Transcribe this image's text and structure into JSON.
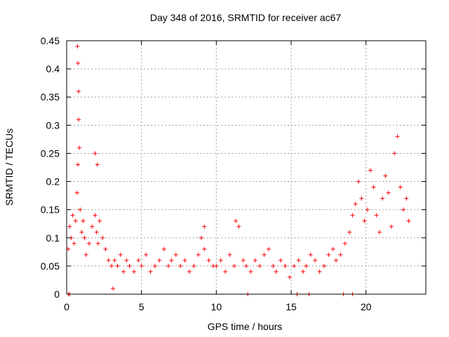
{
  "chart_data": {
    "type": "scatter",
    "title": "Day 348 of 2016, SRMTID for receiver ac67",
    "xlabel": "GPS time / hours",
    "ylabel": "SRMTID / TECUs",
    "xlim": [
      0,
      24
    ],
    "ylim": [
      0,
      0.45
    ],
    "xticks": [
      0,
      5,
      10,
      15,
      20
    ],
    "yticks": [
      0,
      0.05,
      0.1,
      0.15,
      0.2,
      0.25,
      0.3,
      0.35,
      0.4,
      0.45
    ],
    "xtick_labels": [
      "0",
      "5",
      "10",
      "15",
      "20"
    ],
    "ytick_labels": [
      "0",
      "0.05",
      "0.1",
      "0.15",
      "0.2",
      "0.25",
      "0.3",
      "0.35",
      "0.4",
      "0.45"
    ],
    "grid": true,
    "marker": "+",
    "color": "#ff0000",
    "series": [
      {
        "name": "SRMTID",
        "x": [
          0.1,
          0.2,
          0.3,
          0.4,
          0.5,
          0.6,
          0.7,
          0.75,
          0.8,
          0.85,
          0.9,
          1.0,
          1.1,
          1.2,
          1.3,
          1.5,
          1.7,
          1.9,
          2.0,
          2.1,
          2.2,
          2.4,
          2.6,
          2.8,
          3.0,
          3.2,
          3.4,
          3.6,
          3.8,
          4.0,
          4.2,
          4.5,
          4.8,
          5.0,
          5.3,
          5.6,
          5.9,
          6.2,
          6.5,
          6.8,
          7.0,
          7.3,
          7.6,
          7.9,
          8.2,
          8.5,
          8.8,
          9.0,
          9.2,
          9.5,
          9.8,
          10.0,
          10.3,
          10.6,
          10.9,
          11.2,
          11.5,
          11.8,
          12.0,
          12.3,
          12.6,
          12.9,
          13.2,
          13.5,
          13.8,
          14.0,
          14.3,
          14.6,
          14.9,
          15.2,
          15.5,
          15.8,
          16.0,
          16.3,
          16.6,
          16.9,
          17.2,
          17.5,
          17.8,
          18.0,
          18.3,
          18.6,
          18.9,
          19.1,
          19.3,
          19.5,
          19.7,
          19.9,
          20.1,
          20.3,
          20.5,
          20.7,
          20.9,
          21.1,
          21.3,
          21.5,
          21.7,
          21.9,
          22.1,
          22.3,
          22.5,
          22.7,
          22.85,
          0.72,
          0.76,
          0.8,
          1.9,
          2.05,
          3.1,
          9.2,
          11.3,
          0.12,
          0.2,
          12.1,
          15.4,
          16.2,
          18.5,
          19.1
        ],
        "y": [
          0.08,
          0.12,
          0.1,
          0.14,
          0.09,
          0.13,
          0.18,
          0.23,
          0.31,
          0.26,
          0.15,
          0.11,
          0.13,
          0.1,
          0.07,
          0.09,
          0.12,
          0.14,
          0.11,
          0.09,
          0.13,
          0.1,
          0.08,
          0.06,
          0.05,
          0.06,
          0.05,
          0.07,
          0.04,
          0.06,
          0.05,
          0.04,
          0.06,
          0.05,
          0.07,
          0.04,
          0.05,
          0.06,
          0.08,
          0.05,
          0.06,
          0.07,
          0.05,
          0.06,
          0.04,
          0.05,
          0.07,
          0.1,
          0.08,
          0.06,
          0.05,
          0.05,
          0.06,
          0.04,
          0.07,
          0.05,
          0.12,
          0.06,
          0.05,
          0.04,
          0.06,
          0.05,
          0.07,
          0.08,
          0.05,
          0.04,
          0.06,
          0.05,
          0.03,
          0.05,
          0.06,
          0.04,
          0.05,
          0.07,
          0.06,
          0.04,
          0.05,
          0.07,
          0.08,
          0.06,
          0.07,
          0.09,
          0.11,
          0.14,
          0.16,
          0.2,
          0.17,
          0.13,
          0.15,
          0.22,
          0.19,
          0.14,
          0.11,
          0.17,
          0.21,
          0.18,
          0.12,
          0.25,
          0.28,
          0.19,
          0.15,
          0.17,
          0.13,
          0.44,
          0.41,
          0.36,
          0.25,
          0.23,
          0.01,
          0.12,
          0.13,
          0.0,
          0.0,
          0.0,
          0.0,
          0.0,
          0.0,
          0.0
        ]
      }
    ]
  }
}
